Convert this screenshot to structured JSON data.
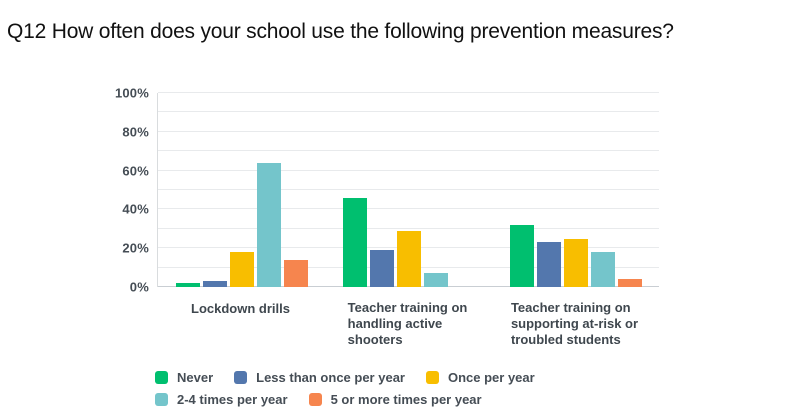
{
  "title": "Q12 How often does your school use the following prevention measures?",
  "colors": {
    "background": "#ffffff",
    "gridline": "#e8eaec",
    "baseline": "#c9ced3",
    "axis_line": "#d9dcde",
    "tick_text": "#454d55",
    "label_text": "#3f474e",
    "title_text": "#111111"
  },
  "chart_data": {
    "type": "bar",
    "title": "Q12 How often does your school use the following prevention measures?",
    "categories": [
      "Lockdown drills",
      "Teacher training on handling active shooters",
      "Teacher training on supporting at-risk or troubled students"
    ],
    "category_label_lines": [
      [
        "Lockdown drills"
      ],
      [
        "Teacher training on",
        "handling active",
        "shooters"
      ],
      [
        "Teacher training on",
        "supporting at-risk or",
        "troubled students"
      ]
    ],
    "series": [
      {
        "name": "Never",
        "color": "#00BF6F",
        "values": [
          2,
          46,
          32
        ]
      },
      {
        "name": "Less than once per year",
        "color": "#5377AD",
        "values": [
          3,
          19,
          23
        ]
      },
      {
        "name": "Once per year",
        "color": "#F8BE00",
        "values": [
          18,
          29,
          25
        ]
      },
      {
        "name": "2-4 times per year",
        "color": "#74C5CB",
        "values": [
          64,
          7,
          18
        ]
      },
      {
        "name": "5 or more times per year",
        "color": "#F6854E",
        "values": [
          14,
          0,
          4
        ]
      }
    ],
    "xlabel": "",
    "ylabel": "",
    "ylim": [
      0,
      100
    ],
    "ytick_labels": [
      "100%",
      "80%",
      "60%",
      "40%",
      "20%",
      "0%"
    ],
    "ytick_step": 20,
    "grid": "on",
    "grid_step_percent": 10,
    "legend_position": "bottom"
  }
}
